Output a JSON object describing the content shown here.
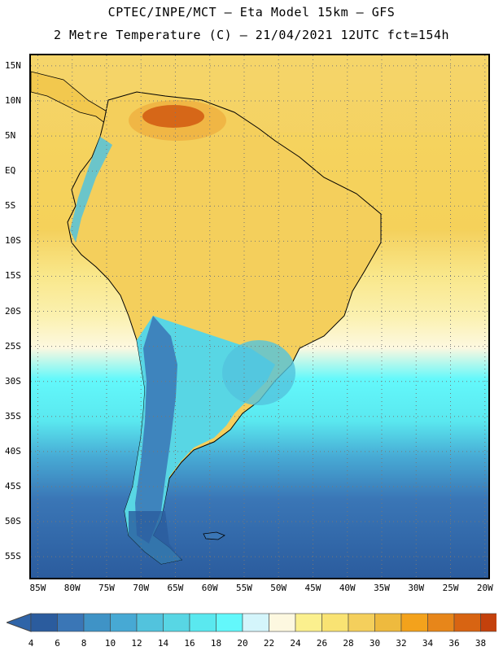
{
  "header": {
    "line1": "CPTEC/INPE/MCT –  Eta Model 15km – GFS",
    "line2": "2 Metre Temperature (C) – 21/04/2021 12UTC fct=154h"
  },
  "map": {
    "lat_labels": [
      "15N",
      "10N",
      "5N",
      "EQ",
      "5S",
      "10S",
      "15S",
      "20S",
      "25S",
      "30S",
      "35S",
      "40S",
      "45S",
      "50S",
      "55S"
    ],
    "lat_values": [
      15,
      10,
      5,
      0,
      -5,
      -10,
      -15,
      -20,
      -25,
      -30,
      -35,
      -40,
      -45,
      -50,
      -55
    ],
    "lon_labels": [
      "85W",
      "80W",
      "75W",
      "70W",
      "65W",
      "60W",
      "55W",
      "50W",
      "45W",
      "40W",
      "35W",
      "30W",
      "25W",
      "20W"
    ],
    "lon_values": [
      -85,
      -80,
      -75,
      -70,
      -65,
      -60,
      -55,
      -50,
      -45,
      -40,
      -35,
      -30,
      -25,
      -20
    ],
    "extent": {
      "lon_min": -86,
      "lon_max": -19.5,
      "lat_min": -58,
      "lat_max": 16.5
    }
  },
  "legend": {
    "values": [
      "4",
      "6",
      "8",
      "10",
      "12",
      "14",
      "16",
      "18",
      "20",
      "22",
      "24",
      "26",
      "28",
      "30",
      "32",
      "34",
      "36",
      "38"
    ],
    "colors": [
      "#2b5c9e",
      "#3a76b6",
      "#3f93c6",
      "#47a9d4",
      "#52c3dd",
      "#58d6e4",
      "#5ae8ef",
      "#63f8fb",
      "#d4f5fb",
      "#fdf8e0",
      "#fbf08e",
      "#f9e373",
      "#f4cf5c",
      "#eeba3e",
      "#f3a21c",
      "#e7861a",
      "#d86412",
      "#c4410c",
      "#ad2d0d",
      "#2f64a8"
    ],
    "low_arrow_color": "#2f64a8",
    "high_arrow_color": "#ad2d0d"
  }
}
